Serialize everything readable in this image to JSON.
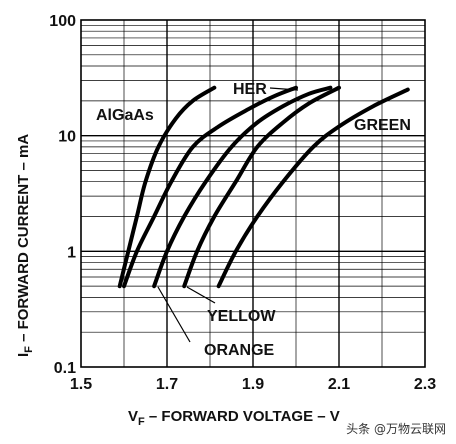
{
  "chart_data": {
    "type": "line",
    "xlabel": {
      "main": "V",
      "sub": "F",
      "rest": " – FORWARD VOLTAGE – V"
    },
    "ylabel": {
      "main": "I",
      "sub": "F",
      "rest": " – FORWARD CURRENT – mA"
    },
    "xlim": [
      1.5,
      2.3
    ],
    "ylim": [
      0.1,
      100
    ],
    "yscale": "log",
    "x_ticks": [
      1.5,
      1.7,
      1.9,
      2.1,
      2.3
    ],
    "x_tick_labels": [
      "1.5",
      "1.7",
      "1.9",
      "2.1",
      "2.3"
    ],
    "y_ticks": [
      0.1,
      1,
      10,
      100
    ],
    "y_tick_labels": [
      "0.1",
      "1",
      "10",
      "100"
    ],
    "grid": true,
    "series": [
      {
        "name": "AlGaAs",
        "points": [
          [
            1.59,
            0.5
          ],
          [
            1.61,
            1
          ],
          [
            1.63,
            2
          ],
          [
            1.65,
            4
          ],
          [
            1.68,
            8
          ],
          [
            1.72,
            14
          ],
          [
            1.76,
            20
          ],
          [
            1.81,
            26
          ]
        ]
      },
      {
        "name": "HER",
        "points": [
          [
            1.6,
            0.5
          ],
          [
            1.63,
            1
          ],
          [
            1.67,
            2
          ],
          [
            1.71,
            4
          ],
          [
            1.76,
            8
          ],
          [
            1.82,
            12
          ],
          [
            1.89,
            17
          ],
          [
            1.95,
            22
          ],
          [
            2.0,
            26
          ]
        ]
      },
      {
        "name": "ORANGE",
        "points": [
          [
            1.67,
            0.5
          ],
          [
            1.7,
            1
          ],
          [
            1.74,
            2
          ],
          [
            1.79,
            4
          ],
          [
            1.85,
            8
          ],
          [
            1.91,
            13
          ],
          [
            1.97,
            18
          ],
          [
            2.03,
            23
          ],
          [
            2.08,
            26
          ]
        ]
      },
      {
        "name": "YELLOW",
        "points": [
          [
            1.74,
            0.5
          ],
          [
            1.77,
            1
          ],
          [
            1.81,
            2
          ],
          [
            1.86,
            4
          ],
          [
            1.91,
            8
          ],
          [
            1.97,
            13
          ],
          [
            2.03,
            19
          ],
          [
            2.1,
            26
          ]
        ]
      },
      {
        "name": "GREEN",
        "points": [
          [
            1.82,
            0.5
          ],
          [
            1.86,
            1
          ],
          [
            1.91,
            2
          ],
          [
            1.97,
            4
          ],
          [
            2.04,
            8
          ],
          [
            2.1,
            12
          ],
          [
            2.18,
            18
          ],
          [
            2.26,
            25
          ]
        ]
      }
    ],
    "annotations": [
      {
        "text": "HER",
        "series": "HER"
      },
      {
        "text": "AlGaAs",
        "series": "AlGaAs"
      },
      {
        "text": "GREEN",
        "series": "GREEN"
      },
      {
        "text": "YELLOW",
        "series": "YELLOW"
      },
      {
        "text": "ORANGE",
        "series": "ORANGE"
      }
    ],
    "colors": {
      "curve": "#000000",
      "grid": "#000000",
      "text": "#111111"
    }
  },
  "watermark": "头条 @万物云联网"
}
